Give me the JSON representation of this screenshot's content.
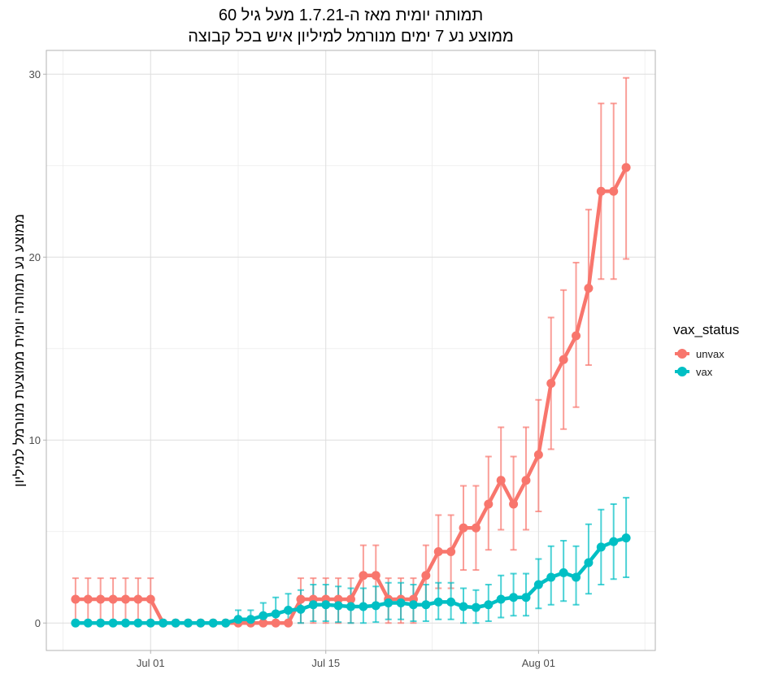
{
  "chart_data": {
    "type": "line",
    "title": [
      "תמותה יומית מאז ה-1.7.21 מעל גיל 60",
      "ממוצע נע 7 ימים מנורמל למיליון איש בכל קבוצה"
    ],
    "xlabel": "",
    "ylabel": "ממוצע נע תמותה יומית ממוצעת מנורמל למיליון",
    "x_start": "2021-06-25",
    "x_end": "2021-08-08",
    "x_ticks": [
      {
        "date": "2021-07-01",
        "label": "Jul 01"
      },
      {
        "date": "2021-07-15",
        "label": "Jul 15"
      },
      {
        "date": "2021-08-01",
        "label": "Aug 01"
      }
    ],
    "y_ticks": [
      0,
      10,
      20,
      30
    ],
    "ylim": [
      -1.5,
      31.3
    ],
    "grid": true,
    "legend": {
      "title": "vax_status",
      "placement": "right"
    },
    "series": [
      {
        "name": "unvax",
        "color": "#F8766D",
        "values": [
          1.3,
          1.3,
          1.3,
          1.3,
          1.3,
          1.3,
          1.3,
          0,
          0,
          0,
          0,
          0,
          0,
          0,
          0,
          0,
          0,
          0,
          1.3,
          1.3,
          1.3,
          1.3,
          1.3,
          2.6,
          2.6,
          1.3,
          1.3,
          1.3,
          2.6,
          3.9,
          3.9,
          5.2,
          5.2,
          6.5,
          7.8,
          6.5,
          7.8,
          9.2,
          13.1,
          14.4,
          15.7,
          18.3,
          23.6,
          23.6,
          24.9
        ],
        "lower": [
          0,
          0,
          0,
          0,
          0,
          0,
          0,
          null,
          null,
          null,
          null,
          null,
          null,
          null,
          null,
          null,
          null,
          null,
          0,
          0,
          0,
          0,
          0,
          1.0,
          1.0,
          0,
          0,
          0,
          1.0,
          1.9,
          1.9,
          2.9,
          2.9,
          4.0,
          5.1,
          4.0,
          5.1,
          6.1,
          9.5,
          10.6,
          11.8,
          14.1,
          18.8,
          18.8,
          19.9
        ],
        "upper": [
          2.45,
          2.45,
          2.45,
          2.45,
          2.45,
          2.45,
          2.45,
          null,
          null,
          null,
          null,
          null,
          null,
          null,
          null,
          null,
          null,
          null,
          2.45,
          2.45,
          2.45,
          2.45,
          2.45,
          4.25,
          4.25,
          2.45,
          2.45,
          2.45,
          4.25,
          5.9,
          5.9,
          7.5,
          7.5,
          9.1,
          10.7,
          9.1,
          10.7,
          12.2,
          16.7,
          18.2,
          19.7,
          22.6,
          28.4,
          28.4,
          29.8
        ]
      },
      {
        "name": "vax",
        "color": "#00BFC4",
        "values": [
          0,
          0,
          0,
          0,
          0,
          0,
          0,
          0,
          0,
          0,
          0,
          0,
          0,
          0.2,
          0.2,
          0.4,
          0.5,
          0.7,
          0.75,
          1.0,
          1.0,
          0.95,
          0.9,
          0.9,
          0.95,
          1.1,
          1.1,
          1.0,
          1.0,
          1.15,
          1.15,
          0.9,
          0.85,
          1.0,
          1.3,
          1.4,
          1.4,
          2.1,
          2.5,
          2.75,
          2.5,
          3.3,
          4.15,
          4.45,
          4.65
        ],
        "lower": [
          null,
          null,
          null,
          null,
          null,
          null,
          null,
          null,
          null,
          null,
          null,
          null,
          null,
          0,
          0,
          0,
          0,
          0,
          0,
          0.1,
          0.1,
          0.05,
          0,
          0,
          0.05,
          0.2,
          0.2,
          0.1,
          0.1,
          0.2,
          0.2,
          0,
          0,
          0.1,
          0.3,
          0.4,
          0.4,
          0.8,
          1.0,
          1.2,
          1.0,
          1.6,
          2.1,
          2.4,
          2.5
        ],
        "upper": [
          null,
          null,
          null,
          null,
          null,
          null,
          null,
          null,
          null,
          null,
          null,
          null,
          null,
          0.7,
          0.7,
          1.1,
          1.4,
          1.6,
          1.8,
          2.1,
          2.1,
          2.0,
          1.9,
          1.9,
          2.0,
          2.2,
          2.2,
          2.1,
          2.1,
          2.2,
          2.2,
          1.9,
          1.8,
          2.1,
          2.6,
          2.7,
          2.7,
          3.5,
          4.2,
          4.5,
          4.2,
          5.4,
          6.2,
          6.5,
          6.85
        ]
      }
    ]
  }
}
